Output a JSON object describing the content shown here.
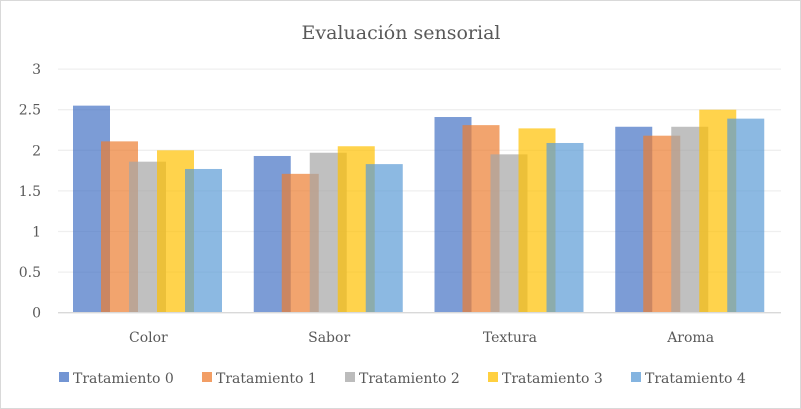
{
  "chart_data": {
    "type": "bar",
    "title": "Evaluación sensorial",
    "categories": [
      "Color",
      "Sabor",
      "Textura",
      "Aroma"
    ],
    "series": [
      {
        "name": "Tratamiento 0",
        "color": "#4472C4",
        "values": [
          2.55,
          1.93,
          2.41,
          2.29
        ]
      },
      {
        "name": "Tratamiento 1",
        "color": "#ED7D31",
        "values": [
          2.11,
          1.71,
          2.31,
          2.18
        ]
      },
      {
        "name": "Tratamiento 2",
        "color": "#A5A5A5",
        "values": [
          1.86,
          1.97,
          1.95,
          2.29
        ]
      },
      {
        "name": "Tratamiento 3",
        "color": "#FFC000",
        "values": [
          2.0,
          2.05,
          2.27,
          2.5
        ]
      },
      {
        "name": "Tratamiento 4",
        "color": "#5B9BD5",
        "values": [
          1.77,
          1.83,
          2.09,
          2.39
        ]
      }
    ],
    "ylim": [
      0,
      3
    ],
    "yticks": [
      "0",
      "0.5",
      "1",
      "1.5",
      "2",
      "2.5",
      "3"
    ],
    "grid": true,
    "legend": "bottom"
  }
}
